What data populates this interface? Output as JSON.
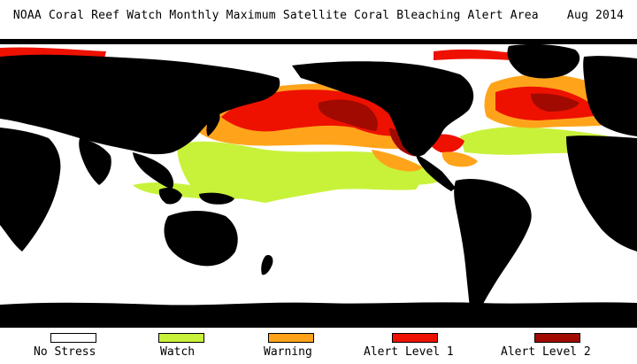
{
  "title": "NOAA Coral Reef Watch Monthly Maximum Satellite Coral Bleaching Alert Area    Aug 2014",
  "colors": {
    "ocean_no_stress": "#ffffff",
    "land": "#000000",
    "watch": "#c8f23a",
    "warning": "#ffa41a",
    "alert1": "#ee1100",
    "alert2": "#a00a00"
  },
  "legend": [
    {
      "label": "No Stress",
      "color": "#ffffff"
    },
    {
      "label": "Watch",
      "color": "#c8f23a"
    },
    {
      "label": "Warning",
      "color": "#ffa41a"
    },
    {
      "label": "Alert Level 1",
      "color": "#ee1100"
    },
    {
      "label": "Alert Level 2",
      "color": "#a00a00"
    }
  ]
}
